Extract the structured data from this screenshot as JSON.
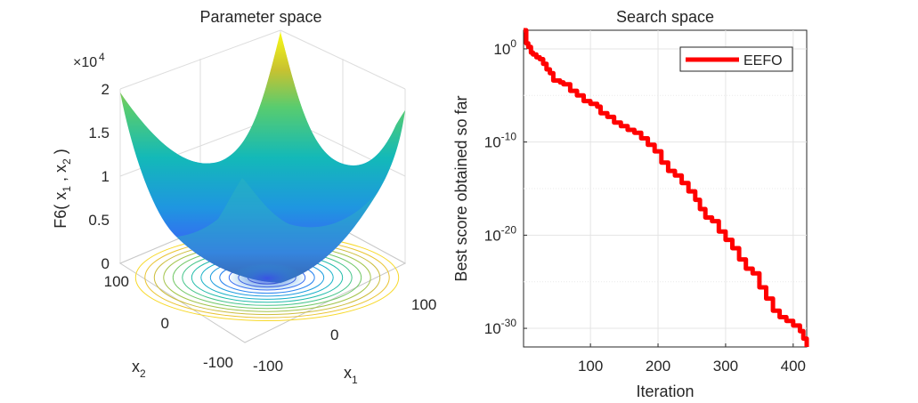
{
  "chart_data": [
    {
      "type": "surface",
      "title": "Parameter space",
      "xlabel": "x",
      "xlabel_sub": "1",
      "ylabel": "x",
      "ylabel_sub": "2",
      "zlabel": "F6( x , x )",
      "zlabel_parts": [
        "F6( x",
        "1",
        " , x",
        "2",
        " )"
      ],
      "x_ticks": [
        "-100",
        "0",
        "100"
      ],
      "y_ticks": [
        "-100",
        "0",
        "100"
      ],
      "z_ticks": [
        "0",
        "0.5",
        "1",
        "1.5",
        "2"
      ],
      "z_exponent_base": "×10",
      "z_exponent_power": "4",
      "xlim": [
        -100,
        100
      ],
      "ylim": [
        -100,
        100
      ],
      "zlim": [
        0,
        20000
      ],
      "function": "x1^2 + x2^2 (shifted sphere)",
      "colormap": "parula",
      "contours": true
    },
    {
      "type": "line",
      "title": "Search space",
      "xlabel": "Iteration",
      "ylabel": "Best score obtained so far",
      "y_scale": "log",
      "xlim": [
        1,
        420
      ],
      "ylim_exponent": [
        -32,
        2
      ],
      "x_ticks": [
        "100",
        "200",
        "300",
        "400"
      ],
      "y_tick_base": "10",
      "y_tick_powers": [
        "0",
        "-10",
        "-20",
        "-30"
      ],
      "grid": true,
      "legend_position": "top-right",
      "series": [
        {
          "name": "EEFO",
          "color": "#ff0000",
          "log10_values": [
            [
              1,
              3.2
            ],
            [
              3,
              2.0
            ],
            [
              5,
              0.6
            ],
            [
              8,
              0.2
            ],
            [
              12,
              -0.4
            ],
            [
              15,
              -0.6
            ],
            [
              20,
              -0.9
            ],
            [
              25,
              -1.1
            ],
            [
              30,
              -1.6
            ],
            [
              35,
              -2.2
            ],
            [
              40,
              -2.6
            ],
            [
              45,
              -3.4
            ],
            [
              55,
              -3.6
            ],
            [
              60,
              -3.8
            ],
            [
              70,
              -4.5
            ],
            [
              80,
              -5.0
            ],
            [
              90,
              -5.6
            ],
            [
              100,
              -5.9
            ],
            [
              110,
              -6.2
            ],
            [
              115,
              -6.9
            ],
            [
              125,
              -7.3
            ],
            [
              135,
              -7.9
            ],
            [
              145,
              -8.3
            ],
            [
              155,
              -8.7
            ],
            [
              165,
              -9.0
            ],
            [
              175,
              -9.6
            ],
            [
              185,
              -10.3
            ],
            [
              195,
              -11.0
            ],
            [
              205,
              -12.2
            ],
            [
              215,
              -13.1
            ],
            [
              225,
              -13.6
            ],
            [
              235,
              -14.4
            ],
            [
              245,
              -15.3
            ],
            [
              255,
              -16.2
            ],
            [
              262,
              -17.2
            ],
            [
              270,
              -18.1
            ],
            [
              280,
              -18.5
            ],
            [
              290,
              -19.6
            ],
            [
              300,
              -20.5
            ],
            [
              310,
              -21.4
            ],
            [
              320,
              -22.6
            ],
            [
              330,
              -23.6
            ],
            [
              340,
              -24.1
            ],
            [
              350,
              -25.6
            ],
            [
              360,
              -26.8
            ],
            [
              370,
              -28.1
            ],
            [
              380,
              -28.8
            ],
            [
              390,
              -29.2
            ],
            [
              400,
              -29.7
            ],
            [
              410,
              -30.3
            ],
            [
              415,
              -31.1
            ],
            [
              420,
              -32.0
            ]
          ]
        }
      ]
    }
  ]
}
